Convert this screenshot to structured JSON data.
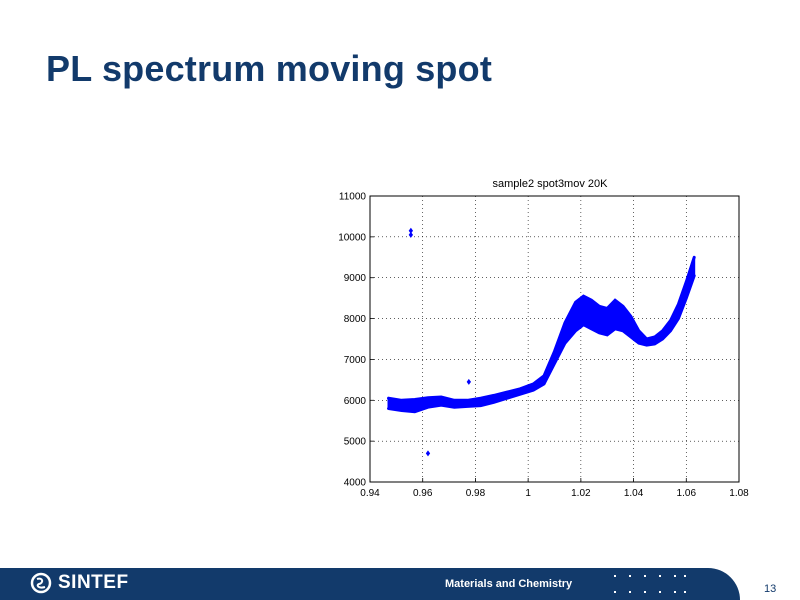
{
  "slide": {
    "title": "PL spectrum moving spot",
    "page_number": "13"
  },
  "footer": {
    "logo_text": "SINTEF",
    "department": "Materials and Chemistry"
  },
  "colors": {
    "title": "#123a6b",
    "footer_bar": "#123a6b",
    "series": "#0000ff"
  },
  "chart_data": {
    "type": "scatter",
    "title": "sample2 spot3mov 20K",
    "xlabel": "",
    "ylabel": "",
    "xlim": [
      0.94,
      1.08
    ],
    "ylim": [
      4000,
      11000
    ],
    "x_ticks": [
      "0.94",
      "0.96",
      "0.98",
      "1",
      "1.02",
      "1.04",
      "1.06",
      "1.08"
    ],
    "y_ticks": [
      "4000",
      "5000",
      "6000",
      "7000",
      "8000",
      "9000",
      "10000",
      "11000"
    ],
    "grid": true,
    "series": [
      {
        "color": "#0000ff",
        "band_upper": [
          [
            0.947,
            6050
          ],
          [
            0.952,
            6000
          ],
          [
            0.957,
            6020
          ],
          [
            0.962,
            6060
          ],
          [
            0.967,
            6080
          ],
          [
            0.972,
            6000
          ],
          [
            0.977,
            6000
          ],
          [
            0.982,
            6050
          ],
          [
            0.987,
            6120
          ],
          [
            0.992,
            6200
          ],
          [
            0.997,
            6280
          ],
          [
            1.002,
            6400
          ],
          [
            1.006,
            6600
          ],
          [
            1.01,
            7200
          ],
          [
            1.014,
            7900
          ],
          [
            1.018,
            8400
          ],
          [
            1.021,
            8550
          ],
          [
            1.024,
            8450
          ],
          [
            1.027,
            8300
          ],
          [
            1.03,
            8250
          ],
          [
            1.033,
            8450
          ],
          [
            1.036,
            8300
          ],
          [
            1.039,
            8050
          ],
          [
            1.042,
            7700
          ],
          [
            1.045,
            7500
          ],
          [
            1.048,
            7550
          ],
          [
            1.051,
            7700
          ],
          [
            1.054,
            7950
          ],
          [
            1.057,
            8350
          ],
          [
            1.06,
            8900
          ],
          [
            1.063,
            9500
          ]
        ],
        "band_lower": [
          [
            0.947,
            5800
          ],
          [
            0.952,
            5750
          ],
          [
            0.957,
            5720
          ],
          [
            0.962,
            5830
          ],
          [
            0.967,
            5880
          ],
          [
            0.972,
            5830
          ],
          [
            0.977,
            5850
          ],
          [
            0.982,
            5870
          ],
          [
            0.987,
            5950
          ],
          [
            0.992,
            6050
          ],
          [
            0.997,
            6150
          ],
          [
            1.002,
            6250
          ],
          [
            1.006,
            6400
          ],
          [
            1.01,
            6900
          ],
          [
            1.014,
            7400
          ],
          [
            1.018,
            7700
          ],
          [
            1.021,
            7850
          ],
          [
            1.024,
            7750
          ],
          [
            1.027,
            7650
          ],
          [
            1.03,
            7600
          ],
          [
            1.033,
            7750
          ],
          [
            1.036,
            7700
          ],
          [
            1.039,
            7550
          ],
          [
            1.042,
            7400
          ],
          [
            1.045,
            7350
          ],
          [
            1.048,
            7380
          ],
          [
            1.051,
            7500
          ],
          [
            1.054,
            7700
          ],
          [
            1.057,
            8000
          ],
          [
            1.06,
            8500
          ],
          [
            1.063,
            9050
          ]
        ],
        "outliers": [
          [
            0.9555,
            10150
          ],
          [
            0.9555,
            10050
          ],
          [
            0.962,
            4700
          ],
          [
            0.9775,
            6450
          ]
        ]
      }
    ]
  }
}
